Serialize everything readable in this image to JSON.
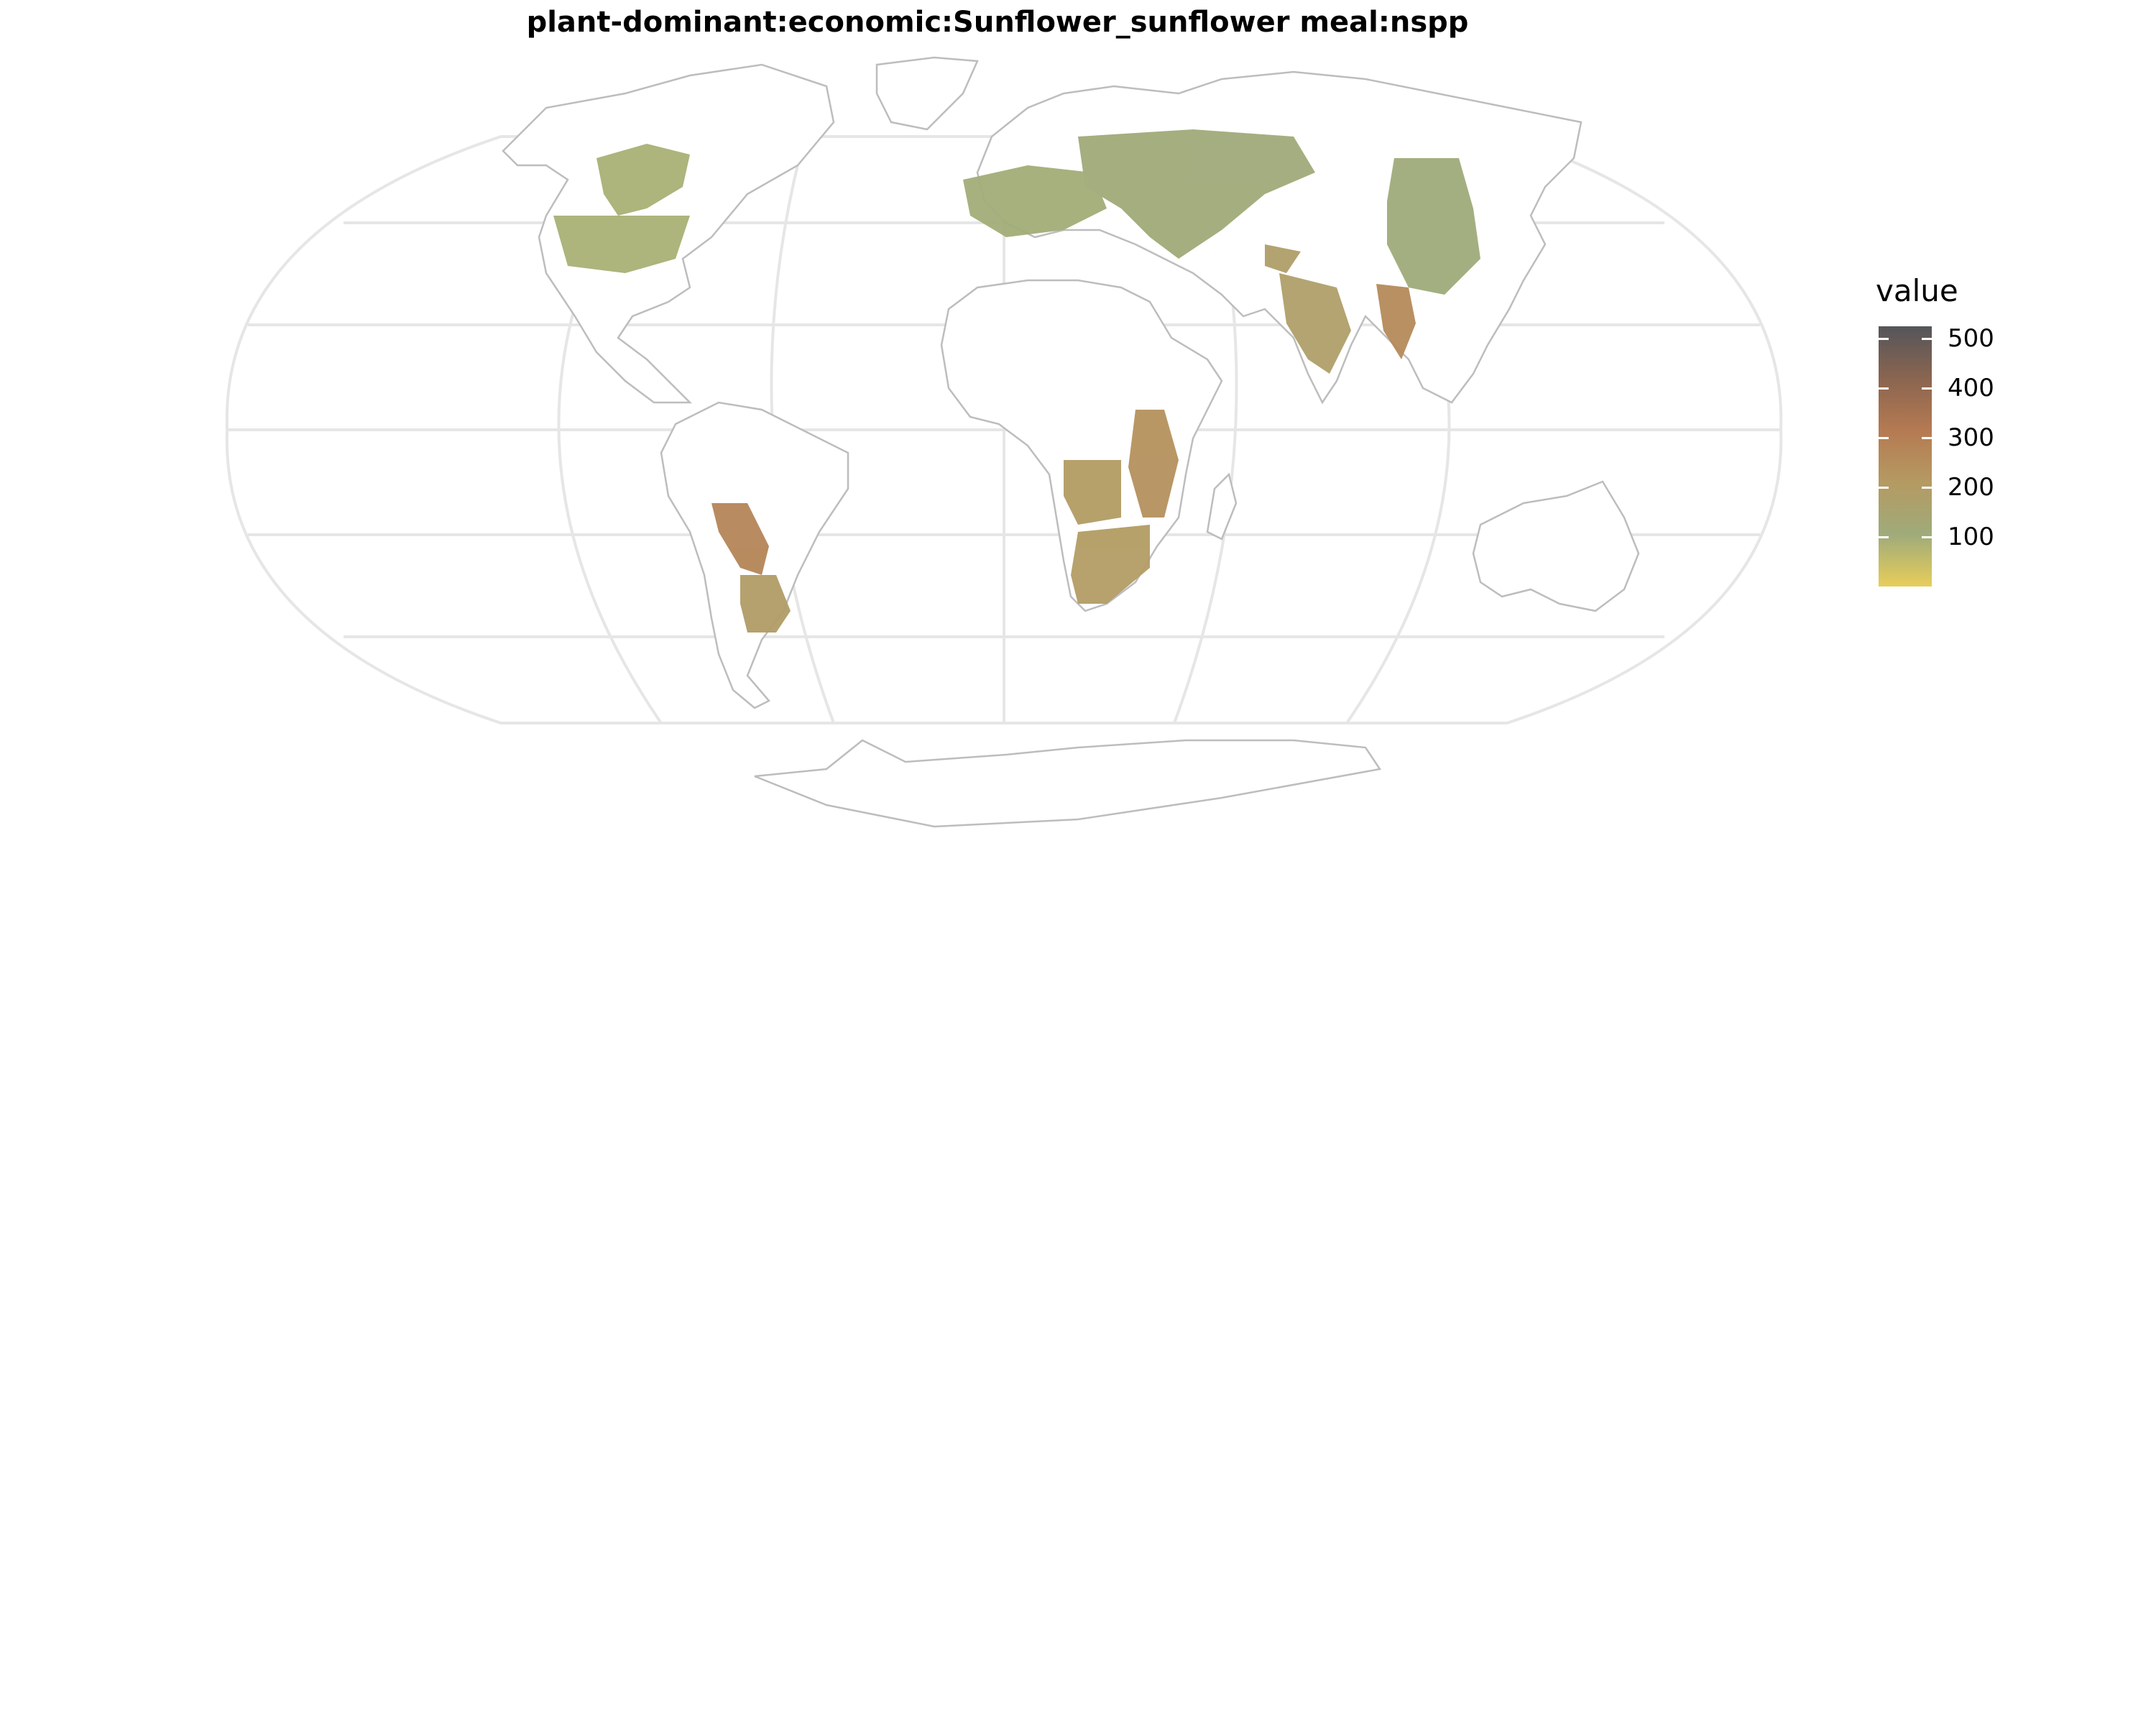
{
  "title": "plant-dominant:economic:Sunflower_sunflower meal:nspp",
  "legend": {
    "title": "value",
    "ticks": [
      {
        "label": "500",
        "value": 500
      },
      {
        "label": "400",
        "value": 400
      },
      {
        "label": "300",
        "value": 300
      },
      {
        "label": "200",
        "value": 200
      },
      {
        "label": "100",
        "value": 100
      }
    ],
    "range": [
      0,
      525
    ],
    "colors": [
      "#e8cd5a",
      "#9fab7a",
      "#b59a62",
      "#b57a52",
      "#8a6550",
      "#55555a"
    ]
  },
  "map": {
    "projection": "Robinson-like world map",
    "graticule_color": "#e6e6e6",
    "coastline_color": "#bdbdbd",
    "data_regions": [
      {
        "name": "north-america-plains",
        "value": 90
      },
      {
        "name": "europe",
        "value": 100
      },
      {
        "name": "russia-central-asia",
        "value": 110
      },
      {
        "name": "east-asia",
        "value": 105
      },
      {
        "name": "south-asia",
        "value": 180
      },
      {
        "name": "myanmar",
        "value": 260
      },
      {
        "name": "east-africa",
        "value": 240
      },
      {
        "name": "southern-africa",
        "value": 200
      },
      {
        "name": "south-america-gran-chaco",
        "value": 280
      },
      {
        "name": "argentina-pampas",
        "value": 190
      }
    ]
  }
}
